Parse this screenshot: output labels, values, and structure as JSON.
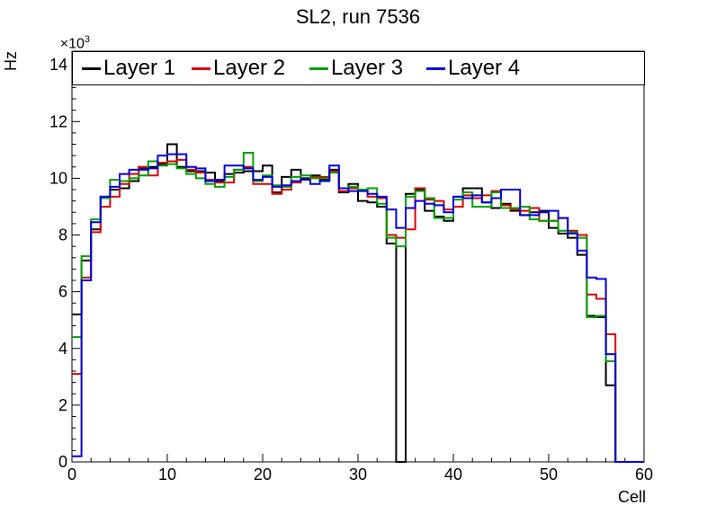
{
  "title": "SL2, run 7536",
  "labels": {
    "y_multiplier_base": "×10",
    "y_multiplier_exp": "3"
  },
  "chart_data": {
    "type": "step-histogram",
    "title": "SL2, run 7536",
    "xlabel": "Cell",
    "ylabel": "Hz",
    "y_axis_multiplier": "×10³",
    "xlim": [
      0,
      60
    ],
    "ylim": [
      0,
      14480
    ],
    "bin_width": 1,
    "grid": false,
    "x_major_ticks": [
      0,
      10,
      20,
      30,
      40,
      50,
      60
    ],
    "x_tick_labels": [
      "0",
      "10",
      "20",
      "30",
      "40",
      "50",
      "60"
    ],
    "x_minor_step": 2,
    "y_major_ticks": [
      0,
      2000,
      4000,
      6000,
      8000,
      10000,
      12000,
      14000
    ],
    "y_tick_labels": [
      "0",
      "2",
      "4",
      "6",
      "8",
      "10",
      "12",
      "14"
    ],
    "y_minor_step": 400,
    "legend": {
      "position": "top-inside",
      "entries": [
        "Layer 1",
        "Layer 2",
        "Layer 3",
        "Layer 4"
      ]
    },
    "series": [
      {
        "name": "Layer 1",
        "color": "#000000",
        "values": [
          5200,
          7100,
          8200,
          9350,
          9600,
          9650,
          9900,
          10350,
          10400,
          10500,
          11200,
          10400,
          10250,
          10250,
          10200,
          9900,
          10150,
          10200,
          10250,
          10250,
          10450,
          9500,
          10050,
          10300,
          10000,
          10100,
          9950,
          10300,
          9500,
          9800,
          9200,
          9150,
          9000,
          7700,
          0,
          9450,
          9600,
          8850,
          8650,
          8500,
          9350,
          9650,
          9650,
          9150,
          8950,
          9100,
          8850,
          8700,
          8800,
          8850,
          8250,
          8050,
          7900,
          7300,
          5150,
          5100,
          2700,
          0,
          0,
          0
        ]
      },
      {
        "name": "Layer 2",
        "color": "#dd0000",
        "values": [
          3100,
          6500,
          8100,
          9000,
          9350,
          9800,
          10150,
          10400,
          10100,
          10550,
          10600,
          10650,
          10300,
          10200,
          9950,
          9850,
          9850,
          10300,
          10400,
          9800,
          9800,
          9450,
          9600,
          9850,
          9950,
          10050,
          10050,
          10250,
          9550,
          9650,
          9600,
          9350,
          9300,
          8000,
          7900,
          8200,
          9650,
          9250,
          9200,
          8900,
          9000,
          9400,
          9300,
          9400,
          9550,
          9050,
          8900,
          8850,
          8950,
          8500,
          8500,
          8600,
          8150,
          8000,
          5900,
          5750,
          4500,
          0,
          0,
          0
        ]
      },
      {
        "name": "Layer 3",
        "color": "#00a000",
        "values": [
          4400,
          7250,
          8550,
          9300,
          9950,
          9900,
          10000,
          10100,
          10600,
          10450,
          10500,
          10350,
          10150,
          10000,
          9800,
          9700,
          10050,
          10300,
          10900,
          9900,
          10100,
          9750,
          9700,
          10050,
          10100,
          10000,
          10000,
          10200,
          9650,
          9700,
          9600,
          9650,
          9100,
          7900,
          7600,
          9350,
          9550,
          9300,
          8600,
          8600,
          9250,
          9500,
          9000,
          9000,
          9500,
          8950,
          8950,
          9000,
          8550,
          8500,
          8500,
          8150,
          8100,
          7900,
          5100,
          5150,
          3550,
          0,
          0,
          0
        ]
      },
      {
        "name": "Layer 4",
        "color": "#0000e0",
        "values": [
          200,
          6400,
          8450,
          9350,
          9700,
          10150,
          10300,
          10300,
          10350,
          10800,
          10850,
          10850,
          10400,
          10350,
          9900,
          9950,
          10450,
          10450,
          10350,
          9950,
          10050,
          9700,
          9750,
          9900,
          9950,
          9800,
          9900,
          10450,
          9650,
          9550,
          9550,
          9450,
          9350,
          8900,
          8250,
          8950,
          9200,
          9100,
          9050,
          8800,
          9350,
          9300,
          9400,
          9150,
          9300,
          9600,
          9600,
          8700,
          8700,
          8800,
          8850,
          8600,
          8050,
          7450,
          6500,
          6450,
          3800,
          0,
          0,
          0
        ]
      }
    ]
  }
}
